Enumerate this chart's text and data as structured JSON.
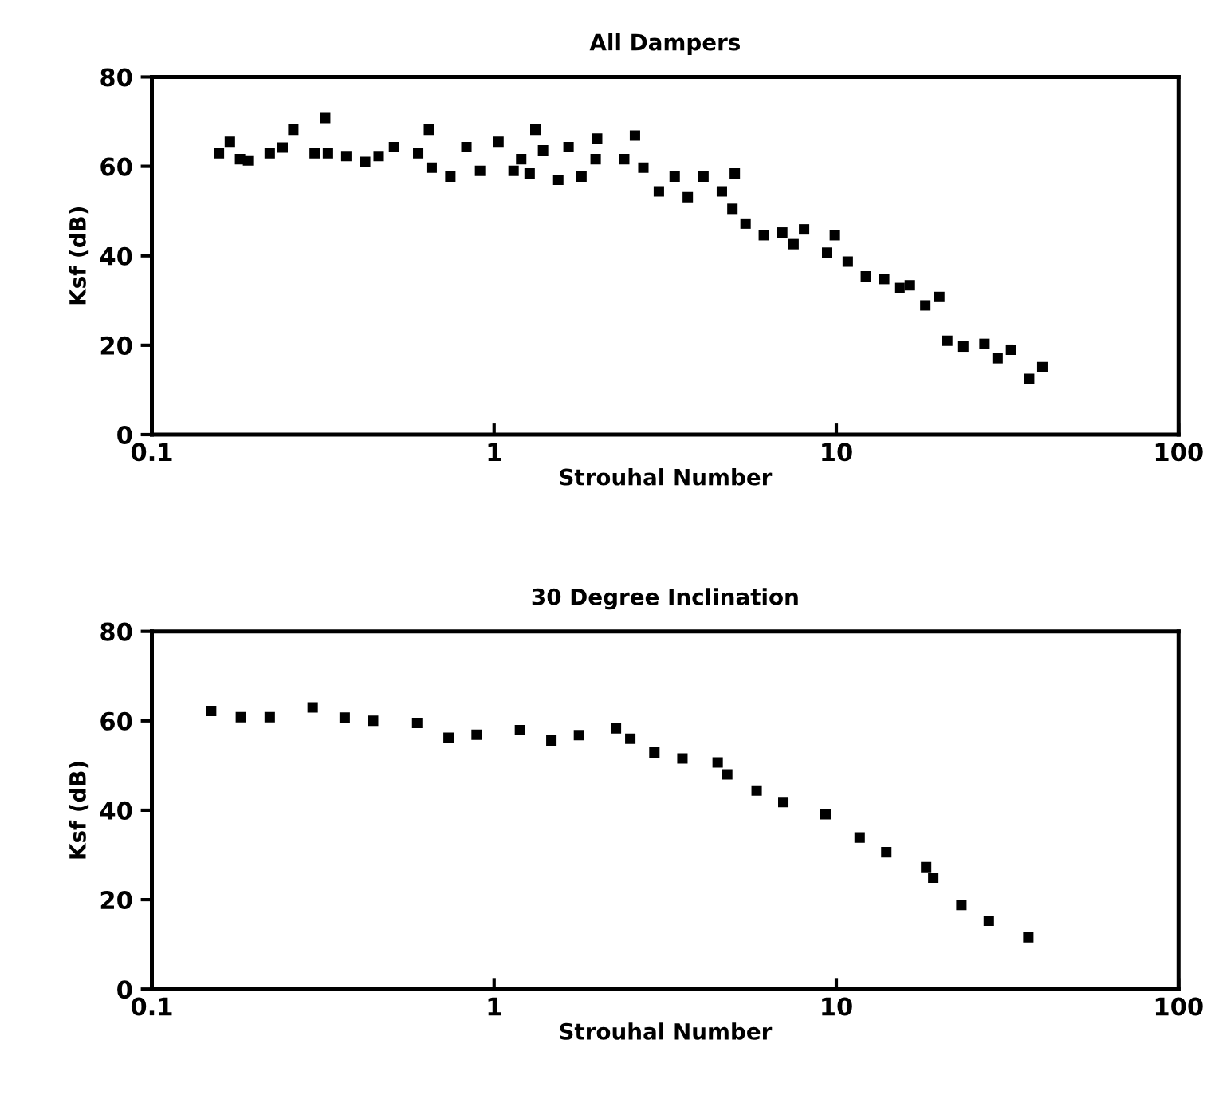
{
  "chart_data": [
    {
      "type": "scatter",
      "title": "All Dampers",
      "xlabel": "Strouhal Number",
      "ylabel": "Ksf (dB)",
      "log": "x",
      "xlim": [
        0.1,
        100
      ],
      "xticks": [
        0.1,
        1,
        10,
        100
      ],
      "ylim": [
        0,
        80
      ],
      "yticks": [
        0,
        20,
        40,
        60,
        80
      ],
      "marker": "square",
      "grid": false,
      "legend": false,
      "series": [
        {
          "color": "#000000",
          "x": [
            0.157,
            0.169,
            0.181,
            0.191,
            0.221,
            0.241,
            0.259,
            0.299,
            0.321,
            0.327,
            0.37,
            0.42,
            0.46,
            0.51,
            0.6,
            0.645,
            0.657,
            0.745,
            0.83,
            0.91,
            1.03,
            1.14,
            1.2,
            1.27,
            1.32,
            1.39,
            1.54,
            1.65,
            1.8,
            2.0,
            1.98,
            2.4,
            2.58,
            2.73,
            3.03,
            3.37,
            3.68,
            4.09,
            4.63,
            5.05,
            4.97,
            5.43,
            6.14,
            6.95,
            7.5,
            8.05,
            9.9,
            9.4,
            10.8,
            12.2,
            13.8,
            15.3,
            16.4,
            18.2,
            20.0,
            21.1,
            23.5,
            27.1,
            29.6,
            32.4,
            36.6,
            40
          ],
          "values": [
            62.9,
            65.5,
            61.6,
            61.3,
            62.9,
            64.2,
            68.2,
            62.9,
            70.8,
            62.9,
            62.3,
            61,
            62.3,
            64.3,
            62.9,
            68.2,
            59.7,
            57.7,
            64.3,
            59,
            65.5,
            59,
            61.6,
            58.4,
            68.2,
            63.6,
            57,
            64.3,
            57.7,
            66.2,
            61.6,
            61.6,
            66.9,
            59.7,
            54.4,
            57.7,
            53.1,
            57.7,
            54.4,
            58.4,
            50.5,
            47.2,
            44.6,
            45.2,
            42.6,
            45.9,
            44.6,
            40.7,
            38.7,
            35.4,
            34.8,
            32.8,
            33.4,
            28.9,
            30.8,
            21,
            19.7,
            20.3,
            17.1,
            19,
            12.5,
            15.1
          ]
        }
      ]
    },
    {
      "type": "scatter",
      "title": "30 Degree Inclination",
      "xlabel": "Strouhal Number",
      "ylabel": "Ksf (dB)",
      "log": "x",
      "xlim": [
        0.1,
        100
      ],
      "xticks": [
        0.1,
        1,
        10,
        100
      ],
      "ylim": [
        0,
        80
      ],
      "yticks": [
        0,
        20,
        40,
        60,
        80
      ],
      "marker": "square",
      "grid": false,
      "legend": false,
      "series": [
        {
          "color": "#000000",
          "x": [
            0.149,
            0.182,
            0.221,
            0.295,
            0.366,
            0.443,
            0.596,
            0.736,
            0.889,
            1.19,
            1.47,
            1.77,
            2.27,
            2.5,
            2.94,
            3.55,
            4.5,
            4.8,
            5.85,
            7.0,
            9.3,
            11.7,
            14.0,
            18.3,
            19.2,
            23.2,
            27.9,
            36.4
          ],
          "values": [
            62.2,
            60.8,
            60.8,
            63,
            60.7,
            60,
            59.5,
            56.2,
            56.9,
            57.9,
            55.6,
            56.8,
            58.3,
            56,
            52.9,
            51.6,
            50.7,
            48,
            44.4,
            41.8,
            39.1,
            33.9,
            30.6,
            27.3,
            24.9,
            18.8,
            15.3,
            11.6
          ]
        }
      ]
    }
  ]
}
